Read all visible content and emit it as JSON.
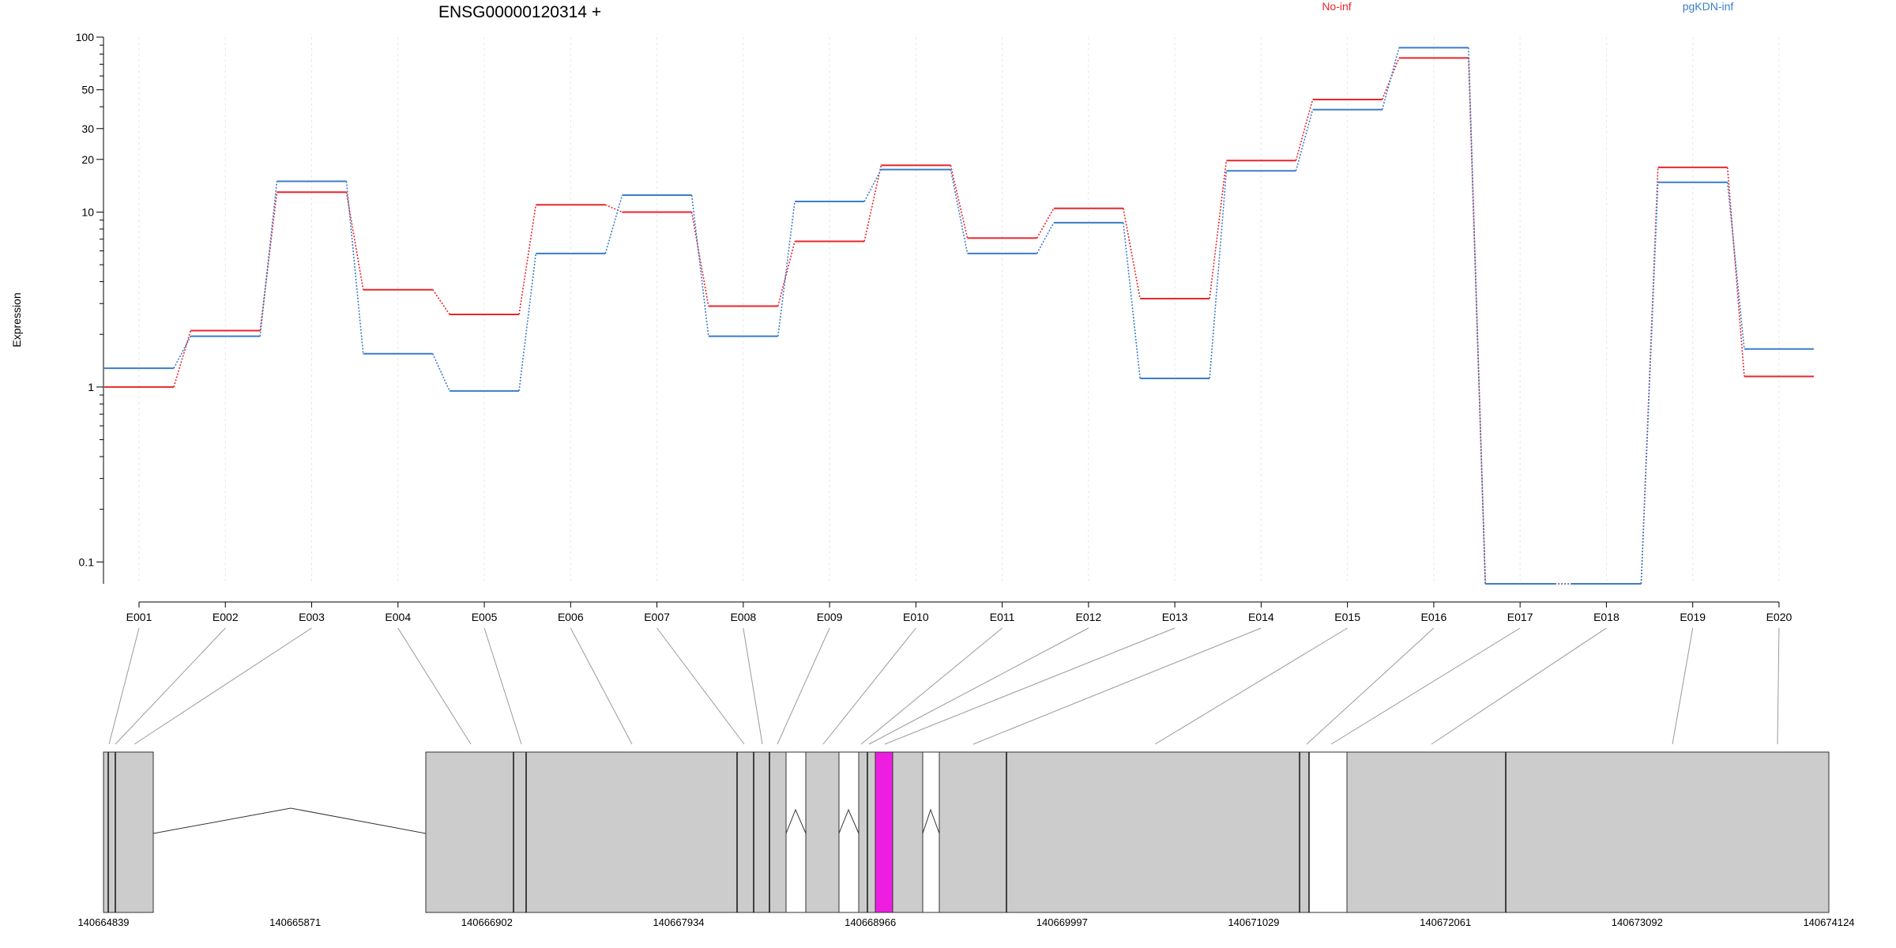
{
  "title": "ENSG00000120314 +",
  "ylabel": "Expression",
  "chart_data": {
    "type": "line",
    "title": "ENSG00000120314 +",
    "ylabel": "Expression",
    "xlabel": "",
    "yscale": "log",
    "ylim": [
      0.075,
      100
    ],
    "yticks": [
      0.1,
      1,
      10,
      20,
      30,
      50,
      100
    ],
    "ytick_labels": [
      "0.1",
      "1",
      "10",
      "20",
      "30",
      "50",
      "100"
    ],
    "yticks_minor": [
      0.2,
      0.3,
      0.4,
      0.5,
      0.6,
      0.7,
      0.8,
      0.9,
      2,
      3,
      4,
      5,
      6,
      7,
      8,
      9,
      40,
      60,
      70,
      80,
      90
    ],
    "grid": "vertical-dotted",
    "legend_position": "top",
    "categories": [
      "E001",
      "E002",
      "E003",
      "E004",
      "E005",
      "E006",
      "E007",
      "E008",
      "E009",
      "E010",
      "E011",
      "E012",
      "E013",
      "E014",
      "E015",
      "E016",
      "E017",
      "E018",
      "E019",
      "E020"
    ],
    "series": [
      {
        "name": "No-inf",
        "color": "#e8262b",
        "values": [
          1.0,
          2.1,
          13.0,
          3.6,
          2.6,
          11.0,
          10.0,
          2.9,
          6.8,
          18.5,
          7.1,
          10.5,
          3.2,
          19.7,
          44.0,
          76.0,
          0.075,
          0.075,
          18.0,
          1.15
        ]
      },
      {
        "name": "pgKDN-inf",
        "color": "#3a7dc9",
        "values": [
          1.28,
          1.95,
          15.0,
          1.55,
          0.95,
          5.8,
          12.5,
          1.95,
          11.5,
          17.5,
          5.8,
          8.7,
          1.12,
          17.2,
          38.5,
          87.0,
          0.075,
          0.075,
          14.8,
          1.65
        ]
      }
    ]
  },
  "gene_model": {
    "coordinates": [
      "140664839",
      "140665871",
      "140666902",
      "140667934",
      "140668966",
      "140669997",
      "140671029",
      "140672061",
      "140673092",
      "140674124"
    ],
    "range": [
      140664839,
      140674124
    ],
    "highlight_exon": "E013",
    "highlight_color": "#ee1ee0",
    "exon_color": "#cccccc"
  }
}
